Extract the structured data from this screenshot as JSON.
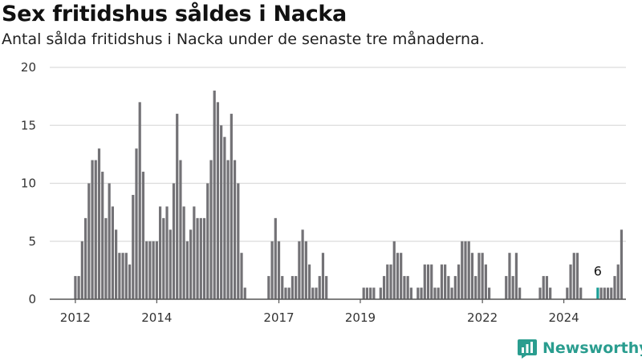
{
  "title": "Sex fritidshus såldes i Nacka",
  "subtitle": "Antal sålda fritidshus i Nacka under de senaste tre månaderna.",
  "brand": {
    "name": "Newsworthy",
    "icon": "newsworthy-logo-icon",
    "color": "#2a9d8f"
  },
  "chart_data": {
    "type": "bar",
    "start": "2012-01",
    "y_ticks": [
      0,
      5,
      10,
      15,
      20
    ],
    "ylim": [
      0,
      20
    ],
    "x_ticks": [
      "2012",
      "2014",
      "2017",
      "2019",
      "2022",
      "2024"
    ],
    "grid": true,
    "bar_color": "#737276",
    "highlight_color": "#1a9e96",
    "highlight": {
      "month": "2024-11",
      "label": "6"
    },
    "values": [
      2,
      2,
      5,
      7,
      10,
      12,
      12,
      13,
      11,
      7,
      10,
      8,
      6,
      4,
      4,
      4,
      3,
      9,
      13,
      17,
      11,
      5,
      5,
      5,
      5,
      8,
      7,
      8,
      6,
      10,
      16,
      12,
      8,
      5,
      6,
      8,
      7,
      7,
      7,
      10,
      12,
      18,
      17,
      15,
      14,
      12,
      16,
      12,
      10,
      4,
      1,
      0,
      0,
      0,
      0,
      0,
      0,
      2,
      5,
      7,
      5,
      2,
      1,
      1,
      2,
      2,
      5,
      6,
      5,
      3,
      1,
      1,
      2,
      4,
      2,
      0,
      0,
      0,
      0,
      0,
      0,
      0,
      0,
      0,
      0,
      1,
      1,
      1,
      1,
      0,
      1,
      2,
      3,
      3,
      5,
      4,
      4,
      2,
      2,
      1,
      0,
      1,
      1,
      3,
      3,
      3,
      1,
      1,
      3,
      3,
      2,
      1,
      2,
      3,
      5,
      5,
      5,
      4,
      2,
      4,
      4,
      3,
      1,
      0,
      0,
      0,
      0,
      2,
      4,
      2,
      4,
      1,
      0,
      0,
      0,
      0,
      0,
      1,
      2,
      2,
      1,
      0,
      0,
      0,
      0,
      1,
      3,
      4,
      4,
      1,
      0,
      0,
      0,
      0,
      1,
      1,
      1,
      1,
      1,
      2,
      3,
      6
    ]
  }
}
